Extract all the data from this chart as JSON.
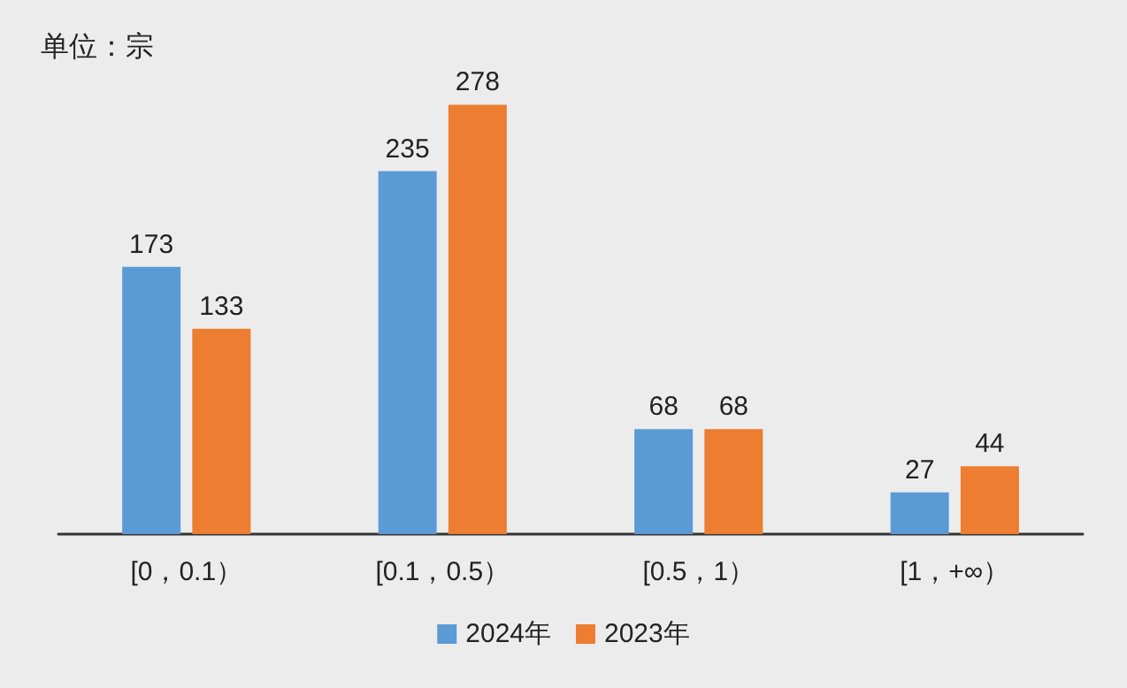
{
  "chart_data": {
    "type": "bar",
    "ylabel": "单位：宗",
    "categories": [
      "[0，0.1）",
      "[0.1，0.5）",
      "[0.5，1）",
      "[1，+∞）"
    ],
    "series": [
      {
        "name": "2024年",
        "color": "#5b9bd5",
        "values": [
          173,
          235,
          68,
          27
        ]
      },
      {
        "name": "2023年",
        "color": "#ed7d31",
        "values": [
          133,
          278,
          68,
          44
        ]
      }
    ],
    "data_labels": true,
    "legend": "bottom"
  }
}
